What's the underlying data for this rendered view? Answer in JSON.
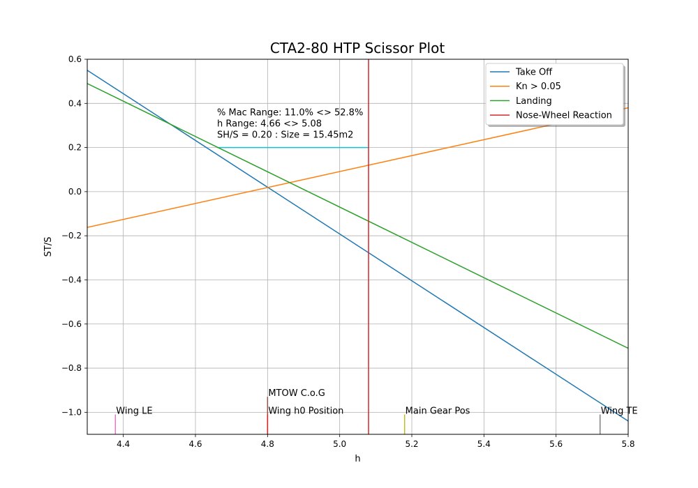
{
  "chart_data": {
    "type": "line",
    "title": "CTA2-80 HTP Scissor Plot",
    "xlabel": "h",
    "ylabel": "ST/S",
    "xlim": [
      4.3,
      5.8
    ],
    "ylim": [
      -1.1,
      0.6
    ],
    "xticks": [
      4.4,
      4.6,
      4.8,
      5.0,
      5.2,
      5.4,
      5.6,
      5.8
    ],
    "xtick_labels": [
      "4.4",
      "4.6",
      "4.8",
      "5.0",
      "5.2",
      "5.4",
      "5.6",
      "5.8"
    ],
    "yticks": [
      -1.0,
      -0.8,
      -0.6,
      -0.4,
      -0.2,
      0.0,
      0.2,
      0.4,
      0.6
    ],
    "ytick_labels": [
      "−1.0",
      "−0.8",
      "−0.6",
      "−0.4",
      "−0.2",
      "0.0",
      "0.2",
      "0.4",
      "0.6"
    ],
    "grid": true,
    "legend_position": "top-right",
    "series": [
      {
        "name": "Take Off",
        "color": "#1f77b4",
        "x": [
          4.3,
          5.8
        ],
        "y": [
          0.55,
          -1.04
        ]
      },
      {
        "name": "Kn > 0.05",
        "color": "#ff7f0e",
        "x": [
          4.3,
          5.8
        ],
        "y": [
          -0.162,
          0.38
        ]
      },
      {
        "name": "Landing",
        "color": "#2ca02c",
        "x": [
          4.3,
          5.8
        ],
        "y": [
          0.49,
          -0.71
        ]
      },
      {
        "name": "Nose-Wheel Reaction",
        "color": "#d62728",
        "x": [
          5.08,
          5.08
        ],
        "y": [
          -1.1,
          0.6
        ]
      }
    ],
    "range_line": {
      "color": "#17becf",
      "x": [
        4.66,
        5.08
      ],
      "y": [
        0.2,
        0.2
      ]
    },
    "annotation_lines": [
      "% Mac Range: 11.0% <> 52.8%",
      "h Range: 4.66 <> 5.08",
      "SH/S = 0.20 : Size = 15.45m2"
    ],
    "annotation_anchor": {
      "x": 4.66,
      "y": 0.345
    },
    "markers": [
      {
        "label": "Wing LE",
        "x": 4.378,
        "y_top": -1.01,
        "color": "#e377c2"
      },
      {
        "label": "MTOW C.o.G",
        "x": 4.8,
        "y_top": -0.93,
        "color": "#8c564b"
      },
      {
        "label": "Wing h0 Position",
        "x": 4.8,
        "y_top": -1.01,
        "color": "#d62728"
      },
      {
        "label": "Main Gear Pos",
        "x": 5.18,
        "y_top": -1.01,
        "color": "#bcbd22"
      },
      {
        "label": "Wing TE",
        "x": 5.722,
        "y_top": -1.01,
        "color": "#7f7f7f"
      }
    ]
  }
}
